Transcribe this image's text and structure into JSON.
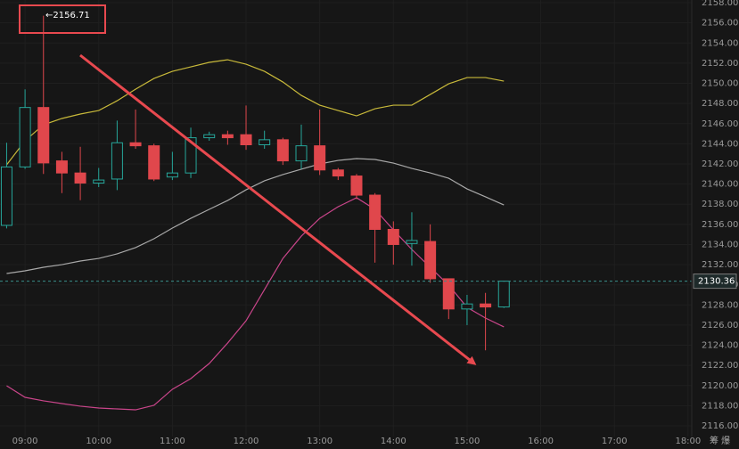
{
  "chart_data": {
    "type": "candlestick",
    "annotation": "←2156.71",
    "corner_text": "筹 爆",
    "up_color": "#26a69a",
    "down_color": "#e0474c",
    "x": [
      8.75,
      9,
      9.25,
      9.5,
      9.75,
      10,
      10.25,
      10.5,
      10.75,
      11,
      11.25,
      11.5,
      11.75,
      12,
      12.25,
      12.5,
      12.75,
      13,
      13.25,
      13.5,
      13.75,
      14,
      14.25,
      14.5,
      14.75,
      15,
      15.25,
      15.5
    ],
    "open": [
      2135.9,
      2141.7,
      2147.6,
      2142.3,
      2141.1,
      2140.1,
      2140.5,
      2144.1,
      2143.8,
      2140.7,
      2141.1,
      2144.6,
      2144.9,
      2144.9,
      2143.9,
      2144.4,
      2142.3,
      2143.8,
      2141.4,
      2140.8,
      2138.9,
      2135.5,
      2134.1,
      2134.3,
      2130.6,
      2127.6,
      2128.1,
      2127.8
    ],
    "high": [
      2144.1,
      2149.4,
      2156.71,
      2143.2,
      2143.7,
      2141.6,
      2146.3,
      2147.4,
      2144.0,
      2143.2,
      2145.6,
      2145.2,
      2145.3,
      2147.8,
      2145.3,
      2144.6,
      2145.9,
      2147.4,
      2141.6,
      2141.0,
      2139.1,
      2136.3,
      2137.2,
      2136.0,
      2130.6,
      2129.0,
      2129.2,
      2130.4
    ],
    "low": [
      2135.6,
      2141.5,
      2141.0,
      2139.1,
      2138.4,
      2139.7,
      2139.4,
      2143.5,
      2140.3,
      2140.4,
      2140.6,
      2144.3,
      2143.9,
      2143.4,
      2143.5,
      2141.9,
      2141.5,
      2140.9,
      2140.4,
      2138.5,
      2132.2,
      2132.0,
      2131.9,
      2130.2,
      2126.6,
      2126.0,
      2123.5,
      2127.7
    ],
    "close": [
      2141.7,
      2147.6,
      2142.1,
      2141.1,
      2140.1,
      2140.4,
      2144.1,
      2143.8,
      2140.5,
      2141.1,
      2144.6,
      2144.9,
      2144.6,
      2143.9,
      2144.4,
      2142.3,
      2143.8,
      2141.4,
      2140.8,
      2138.9,
      2135.5,
      2134.0,
      2134.4,
      2130.6,
      2127.6,
      2128.1,
      2127.8,
      2130.36
    ],
    "lines": [
      {
        "color": "#c8b93a",
        "values": [
          2141.91,
          2144.3,
          2145.89,
          2146.51,
          2146.95,
          2147.3,
          2148.27,
          2149.42,
          2150.48,
          2151.19,
          2151.63,
          2152.08,
          2152.34,
          2151.9,
          2151.19,
          2150.13,
          2148.8,
          2147.83,
          2147.3,
          2146.77,
          2147.48,
          2147.83,
          2147.83,
          2148.89,
          2149.95,
          2150.57,
          2150.57,
          2150.22
        ]
      },
      {
        "color": "#a8a8a8",
        "values": [
          2131.12,
          2131.39,
          2131.74,
          2132.0,
          2132.36,
          2132.62,
          2133.07,
          2133.69,
          2134.57,
          2135.63,
          2136.6,
          2137.49,
          2138.37,
          2139.43,
          2140.32,
          2140.94,
          2141.47,
          2142.0,
          2142.35,
          2142.53,
          2142.44,
          2142.08,
          2141.55,
          2141.11,
          2140.58,
          2139.52,
          2138.73,
          2137.93
        ]
      },
      {
        "color": "#c9458a",
        "values": [
          2119.98,
          2118.83,
          2118.48,
          2118.21,
          2117.95,
          2117.77,
          2117.68,
          2117.59,
          2118.04,
          2119.63,
          2120.69,
          2122.19,
          2124.22,
          2126.43,
          2129.53,
          2132.62,
          2134.83,
          2136.6,
          2137.75,
          2138.64,
          2137.49,
          2135.45,
          2133.51,
          2131.74,
          2129.97,
          2127.76,
          2126.7,
          2125.82
        ]
      }
    ],
    "last_price": 2130.36,
    "xlim": [
      8.66,
      18.05
    ],
    "ylim": [
      2114.94,
      2158.27
    ],
    "xticks": [
      {
        "value": 9,
        "label": "09:00"
      },
      {
        "value": 10,
        "label": "10:00"
      },
      {
        "value": 11,
        "label": "11:00"
      },
      {
        "value": 12,
        "label": "12:00"
      },
      {
        "value": 13,
        "label": "13:00"
      },
      {
        "value": 14,
        "label": "14:00"
      },
      {
        "value": 15,
        "label": "15:00"
      },
      {
        "value": 16,
        "label": "16:00"
      },
      {
        "value": 17,
        "label": "17:00"
      },
      {
        "value": 18,
        "label": "18:00"
      }
    ],
    "yticks": [
      {
        "value": 2116,
        "label": "2116.00"
      },
      {
        "value": 2118,
        "label": "2118.00"
      },
      {
        "value": 2120,
        "label": "2120.00"
      },
      {
        "value": 2122,
        "label": "2122.00"
      },
      {
        "value": 2124,
        "label": "2124.00"
      },
      {
        "value": 2126,
        "label": "2126.00"
      },
      {
        "value": 2128,
        "label": "2128.00"
      },
      {
        "value": 2130,
        "label": "2130.00"
      },
      {
        "value": 2132,
        "label": "2132.00"
      },
      {
        "value": 2134,
        "label": "2134.00"
      },
      {
        "value": 2136,
        "label": "2136.00"
      },
      {
        "value": 2138,
        "label": "2138.00"
      },
      {
        "value": 2140,
        "label": "2140.00"
      },
      {
        "value": 2142,
        "label": "2142.00"
      },
      {
        "value": 2144,
        "label": "2144.00"
      },
      {
        "value": 2146,
        "label": "2146.00"
      },
      {
        "value": 2148,
        "label": "2148.00"
      },
      {
        "value": 2150,
        "label": "2150.00"
      },
      {
        "value": 2152,
        "label": "2152.00"
      },
      {
        "value": 2154,
        "label": "2154.00"
      },
      {
        "value": 2156,
        "label": "2156.00"
      },
      {
        "value": 2158,
        "label": "2158.00"
      }
    ],
    "grid": true
  }
}
